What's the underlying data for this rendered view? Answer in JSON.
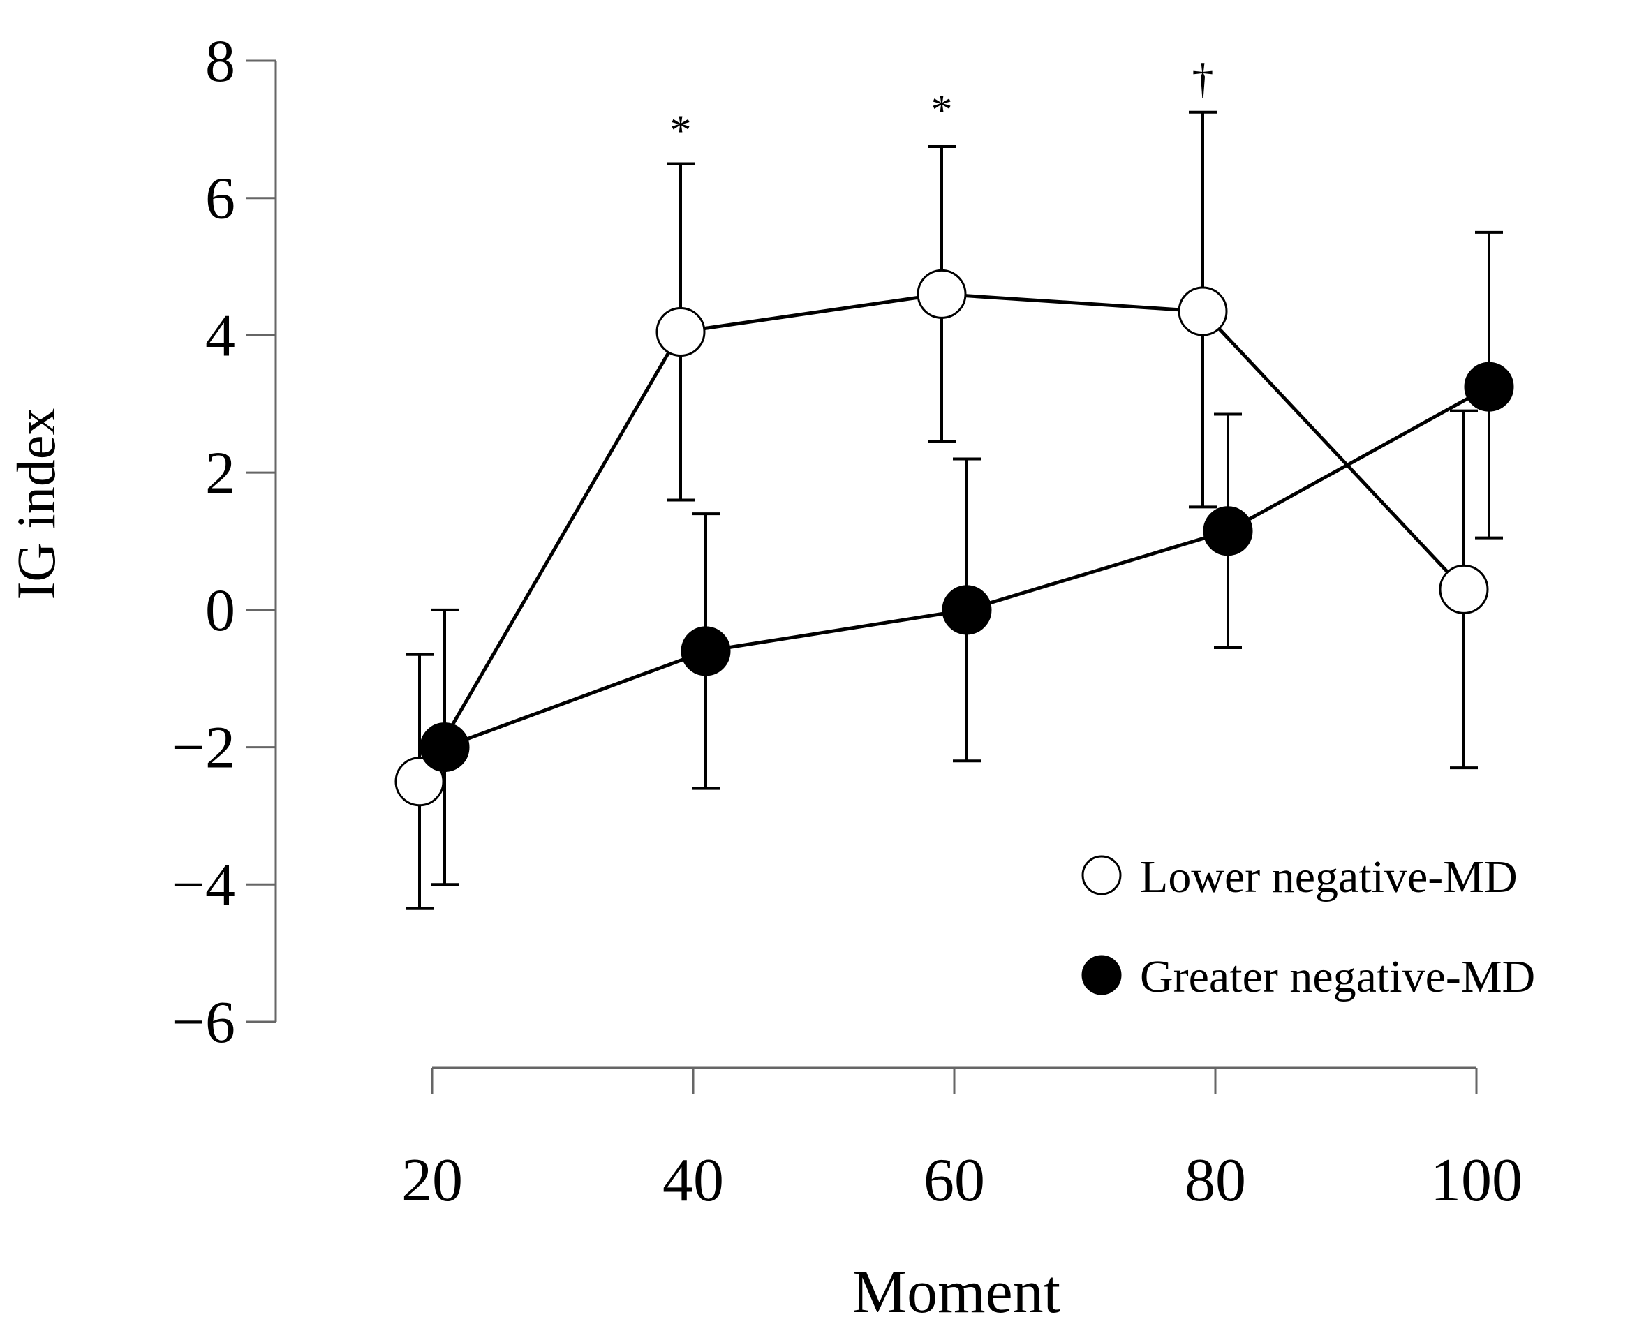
{
  "chart_data": {
    "type": "line",
    "title": "",
    "xlabel": "Moment",
    "ylabel": "IG index",
    "x": [
      20,
      40,
      60,
      80,
      100
    ],
    "x_tick_labels": [
      "20",
      "40",
      "60",
      "80",
      "100"
    ],
    "y_ticks": [
      8,
      6,
      4,
      2,
      0,
      -2,
      -4,
      -6
    ],
    "y_tick_labels": [
      "8",
      "6",
      "4",
      "2",
      "0",
      "−2",
      "−4",
      "−6"
    ],
    "ylim": [
      -6,
      8
    ],
    "xlim": [
      20,
      100
    ],
    "grid": false,
    "legend_position": "bottom-right",
    "series": [
      {
        "name": "Lower negative-MD",
        "marker": "open-circle",
        "fill": "#ffffff",
        "values": [
          -2.5,
          4.05,
          4.6,
          4.35,
          0.3
        ],
        "err_low": [
          -4.35,
          1.6,
          2.45,
          1.5,
          -2.3
        ],
        "err_high": [
          -0.65,
          6.5,
          6.75,
          7.25,
          2.9
        ]
      },
      {
        "name": "Greater negative-MD",
        "marker": "filled-circle",
        "fill": "#000000",
        "values": [
          -2.0,
          -0.6,
          0.0,
          1.15,
          3.25
        ],
        "err_low": [
          -4.0,
          -2.6,
          -2.2,
          -0.55,
          1.05
        ],
        "err_high": [
          0.0,
          1.4,
          2.2,
          2.85,
          5.5
        ]
      }
    ],
    "annotations": [
      {
        "x": 40,
        "y": 7.0,
        "text": "*"
      },
      {
        "x": 60,
        "y": 7.3,
        "text": "*"
      },
      {
        "x": 80,
        "y": 7.75,
        "text": "†"
      }
    ]
  }
}
